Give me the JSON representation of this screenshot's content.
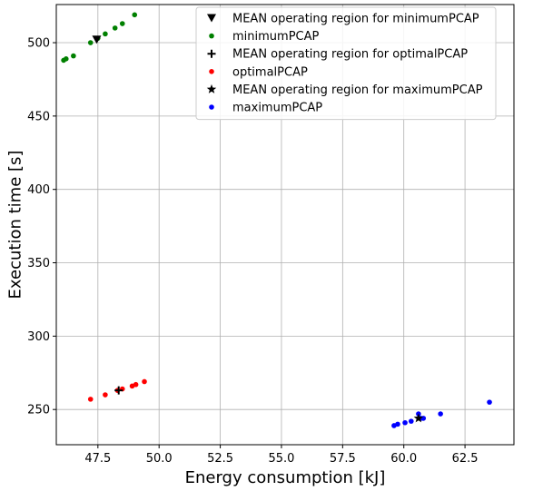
{
  "chart_data": {
    "type": "scatter",
    "title": "",
    "xlabel": "Energy consumption [kJ]",
    "ylabel": "Execution time [s]",
    "xlim": [
      45.8,
      64.5
    ],
    "ylim": [
      226,
      526
    ],
    "xticks": [
      47.5,
      50.0,
      52.5,
      55.0,
      57.5,
      60.0,
      62.5
    ],
    "xtick_labels": [
      "47.5",
      "50.0",
      "52.5",
      "55.0",
      "57.5",
      "60.0",
      "62.5"
    ],
    "yticks": [
      250,
      300,
      350,
      400,
      450,
      500
    ],
    "ytick_labels": [
      "250",
      "300",
      "350",
      "400",
      "450",
      "500"
    ],
    "grid": true,
    "legend_position": "top-right",
    "series": [
      {
        "name": "MEAN operating region for minimumPCAP",
        "color": "#000000",
        "marker": "triangle-down",
        "points": [
          [
            47.45,
            502
          ]
        ]
      },
      {
        "name": "minimumPCAP",
        "color": "#008000",
        "marker": "dot",
        "points": [
          [
            46.1,
            488
          ],
          [
            46.2,
            489
          ],
          [
            46.5,
            491
          ],
          [
            47.2,
            500
          ],
          [
            47.5,
            503
          ],
          [
            47.8,
            506
          ],
          [
            48.2,
            510
          ],
          [
            48.5,
            513
          ],
          [
            49.0,
            519
          ]
        ]
      },
      {
        "name": "MEAN operating region for optimalPCAP",
        "color": "#000000",
        "marker": "plus",
        "points": [
          [
            48.35,
            263
          ]
        ]
      },
      {
        "name": "optimalPCAP",
        "color": "#ff0000",
        "marker": "dot",
        "points": [
          [
            47.2,
            257
          ],
          [
            47.8,
            260
          ],
          [
            48.3,
            263
          ],
          [
            48.5,
            264
          ],
          [
            48.9,
            266
          ],
          [
            49.05,
            267
          ],
          [
            49.4,
            269
          ]
        ]
      },
      {
        "name": "MEAN operating region for maximumPCAP",
        "color": "#000000",
        "marker": "star",
        "points": [
          [
            60.6,
            244
          ]
        ]
      },
      {
        "name": "maximumPCAP",
        "color": "#0000ff",
        "marker": "dot",
        "points": [
          [
            59.6,
            239
          ],
          [
            59.75,
            240
          ],
          [
            60.05,
            241
          ],
          [
            60.3,
            242
          ],
          [
            60.6,
            247
          ],
          [
            60.7,
            244
          ],
          [
            60.8,
            244
          ],
          [
            61.5,
            247
          ],
          [
            63.5,
            255
          ]
        ]
      }
    ]
  }
}
